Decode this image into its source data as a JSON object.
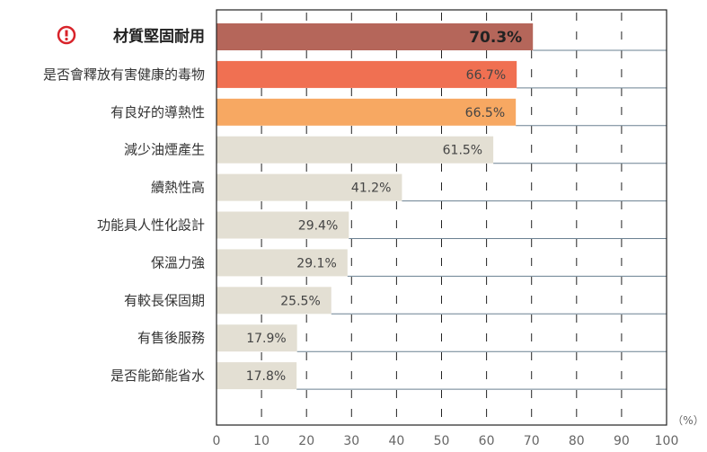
{
  "chart_data": {
    "type": "bar",
    "orientation": "horizontal",
    "categories": [
      "材質堅固耐用",
      "是否會釋放有害健康的毒物",
      "有良好的導熱性",
      "減少油煙產生",
      "續熱性高",
      "功能具人性化設計",
      "保溫力強",
      "有較長保固期",
      "有售後服務",
      "是否能節能省水"
    ],
    "values": [
      70.3,
      66.7,
      66.5,
      61.5,
      41.2,
      29.4,
      29.1,
      25.5,
      17.9,
      17.8
    ],
    "value_labels": [
      "70.3%",
      "66.7%",
      "66.5%",
      "61.5%",
      "41.2%",
      "29.4%",
      "29.1%",
      "25.5%",
      "17.9%",
      "17.8%"
    ],
    "highlighted_category": "材質堅固耐用",
    "highlight_icon": "exclamation-circle-icon",
    "bar_colors": [
      "#b5665a",
      "#f07052",
      "#f7a862",
      "#e3dfd3",
      "#e3dfd3",
      "#e3dfd3",
      "#e3dfd3",
      "#e3dfd3",
      "#e3dfd3",
      "#e3dfd3"
    ],
    "xlim": [
      0,
      100
    ],
    "xticks": [
      "0",
      "10",
      "20",
      "30",
      "40",
      "50",
      "60",
      "70",
      "80",
      "90",
      "100"
    ],
    "xunit": "（%）",
    "grid": "vertical dashed",
    "title": "",
    "xlabel": "",
    "ylabel": ""
  }
}
